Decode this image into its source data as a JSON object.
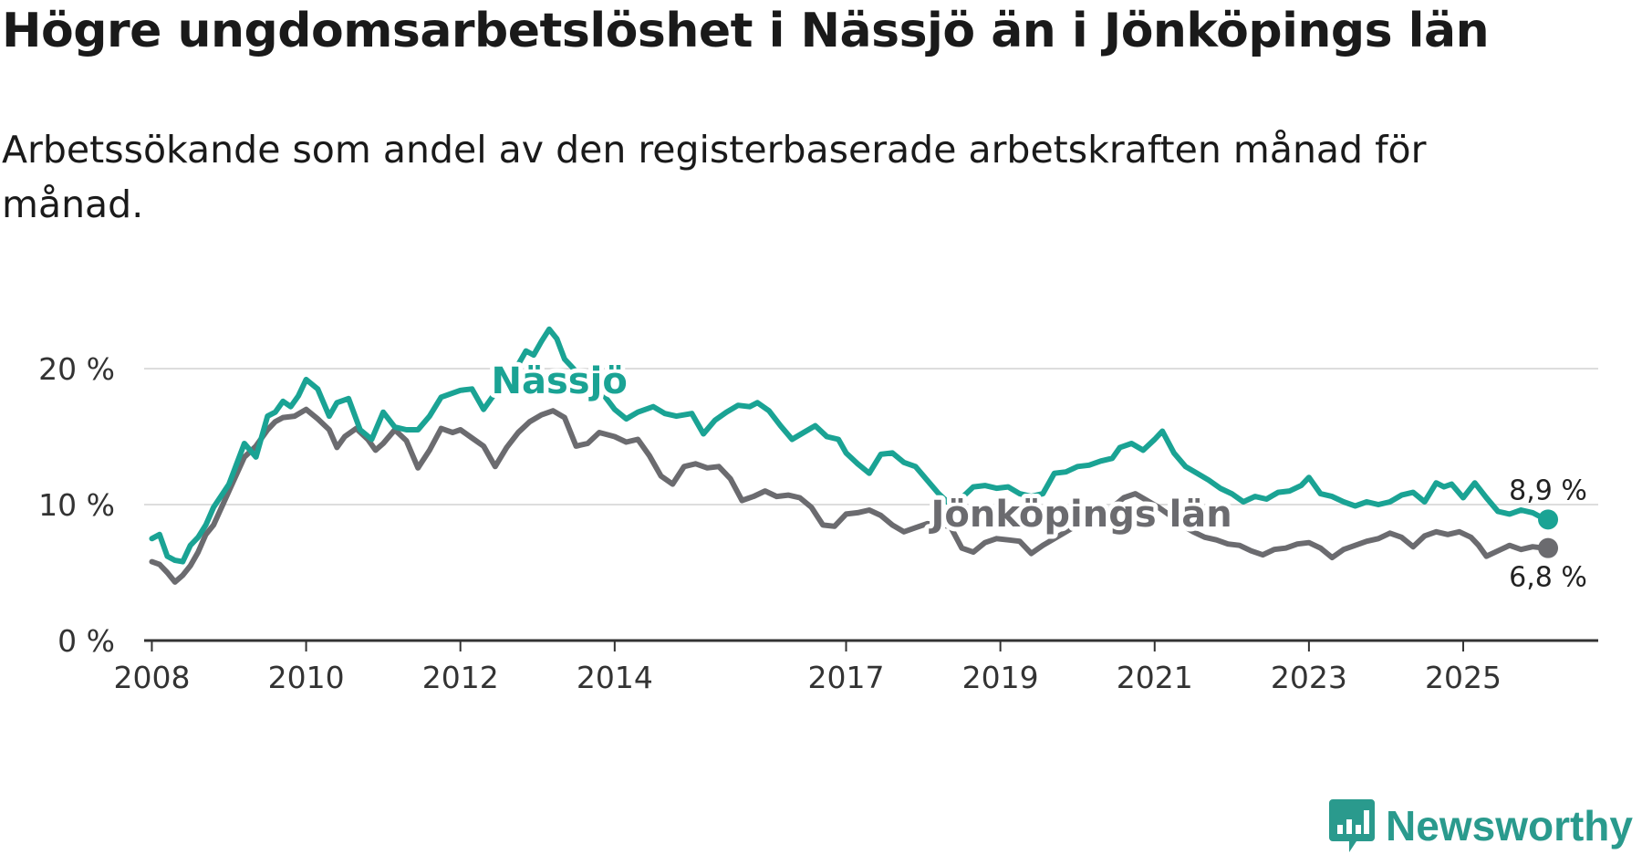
{
  "title": "Högre ungdomsarbetslöshet i Nässjö än i Jönköpings län",
  "subtitle": "Arbetssökande som andel av den registerbaserade arbetskraften månad för månad.",
  "brand": "Newsworthy",
  "colors": {
    "nassjo": "#1aa394",
    "lan": "#6b6b6f",
    "grid": "#dddddd",
    "axis": "#333333",
    "brand": "#2a9a8d"
  },
  "chart_data": {
    "type": "line",
    "title": "Högre ungdomsarbetslöshet i Nässjö än i Jönköpings län",
    "xlabel": "",
    "ylabel": "",
    "xlim": [
      2007.9,
      2026.75
    ],
    "ylim": [
      0,
      20
    ],
    "y_ticks": [
      {
        "value": 0,
        "label": "0 %"
      },
      {
        "value": 10,
        "label": "10 %"
      },
      {
        "value": 20,
        "label": "20 %"
      }
    ],
    "x_ticks": [
      {
        "value": 2008,
        "label": "2008"
      },
      {
        "value": 2010,
        "label": "2010"
      },
      {
        "value": 2012,
        "label": "2012"
      },
      {
        "value": 2014,
        "label": "2014"
      },
      {
        "value": 2017,
        "label": "2017"
      },
      {
        "value": 2019,
        "label": "2019"
      },
      {
        "value": 2021,
        "label": "2021"
      },
      {
        "value": 2023,
        "label": "2023"
      },
      {
        "value": 2025,
        "label": "2025"
      }
    ],
    "grid": true,
    "series": [
      {
        "name": "Nässjö",
        "label": "Nässjö",
        "end_label": "8,9 %",
        "points": [
          [
            2008.0,
            7.5
          ],
          [
            2008.1,
            7.8
          ],
          [
            2008.2,
            6.2
          ],
          [
            2008.3,
            5.9
          ],
          [
            2008.4,
            5.8
          ],
          [
            2008.5,
            7.0
          ],
          [
            2008.6,
            7.6
          ],
          [
            2008.7,
            8.5
          ],
          [
            2008.8,
            9.8
          ],
          [
            2009.0,
            11.5
          ],
          [
            2009.2,
            14.5
          ],
          [
            2009.35,
            13.5
          ],
          [
            2009.5,
            16.5
          ],
          [
            2009.6,
            16.8
          ],
          [
            2009.7,
            17.6
          ],
          [
            2009.8,
            17.2
          ],
          [
            2009.9,
            18.0
          ],
          [
            2010.0,
            19.2
          ],
          [
            2010.15,
            18.5
          ],
          [
            2010.3,
            16.5
          ],
          [
            2010.4,
            17.5
          ],
          [
            2010.55,
            17.8
          ],
          [
            2010.7,
            15.5
          ],
          [
            2010.85,
            14.8
          ],
          [
            2011.0,
            16.8
          ],
          [
            2011.15,
            15.7
          ],
          [
            2011.3,
            15.5
          ],
          [
            2011.45,
            15.5
          ],
          [
            2011.6,
            16.5
          ],
          [
            2011.75,
            17.9
          ],
          [
            2011.9,
            18.2
          ],
          [
            2012.0,
            18.4
          ],
          [
            2012.15,
            18.5
          ],
          [
            2012.3,
            17.0
          ],
          [
            2012.45,
            18.2
          ],
          [
            2012.6,
            19.2
          ],
          [
            2012.75,
            20.3
          ],
          [
            2012.85,
            21.3
          ],
          [
            2012.95,
            21.0
          ],
          [
            2013.05,
            22.0
          ],
          [
            2013.15,
            22.9
          ],
          [
            2013.25,
            22.2
          ],
          [
            2013.35,
            20.7
          ],
          [
            2013.5,
            19.8
          ],
          [
            2013.65,
            19.3
          ],
          [
            2013.8,
            18.5
          ],
          [
            2014.0,
            17.0
          ],
          [
            2014.15,
            16.3
          ],
          [
            2014.3,
            16.8
          ],
          [
            2014.5,
            17.2
          ],
          [
            2014.65,
            16.7
          ],
          [
            2014.8,
            16.5
          ],
          [
            2015.0,
            16.7
          ],
          [
            2015.15,
            15.2
          ],
          [
            2015.3,
            16.2
          ],
          [
            2015.45,
            16.8
          ],
          [
            2015.6,
            17.3
          ],
          [
            2015.75,
            17.2
          ],
          [
            2015.85,
            17.5
          ],
          [
            2016.0,
            16.9
          ],
          [
            2016.15,
            15.8
          ],
          [
            2016.3,
            14.8
          ],
          [
            2016.45,
            15.3
          ],
          [
            2016.6,
            15.8
          ],
          [
            2016.75,
            15.0
          ],
          [
            2016.9,
            14.8
          ],
          [
            2017.0,
            13.8
          ],
          [
            2017.15,
            13.0
          ],
          [
            2017.3,
            12.3
          ],
          [
            2017.45,
            13.7
          ],
          [
            2017.6,
            13.8
          ],
          [
            2017.75,
            13.1
          ],
          [
            2017.9,
            12.8
          ],
          [
            2018.05,
            11.8
          ],
          [
            2018.2,
            10.8
          ],
          [
            2018.35,
            10.0
          ],
          [
            2018.5,
            10.5
          ],
          [
            2018.65,
            11.3
          ],
          [
            2018.8,
            11.4
          ],
          [
            2018.95,
            11.2
          ],
          [
            2019.1,
            11.3
          ],
          [
            2019.25,
            10.8
          ],
          [
            2019.4,
            10.6
          ],
          [
            2019.55,
            10.8
          ],
          [
            2019.7,
            12.3
          ],
          [
            2019.85,
            12.4
          ],
          [
            2020.0,
            12.8
          ],
          [
            2020.15,
            12.9
          ],
          [
            2020.3,
            13.2
          ],
          [
            2020.45,
            13.4
          ],
          [
            2020.55,
            14.2
          ],
          [
            2020.7,
            14.5
          ],
          [
            2020.85,
            14.0
          ],
          [
            2021.0,
            14.8
          ],
          [
            2021.1,
            15.4
          ],
          [
            2021.25,
            13.8
          ],
          [
            2021.4,
            12.8
          ],
          [
            2021.55,
            12.3
          ],
          [
            2021.7,
            11.8
          ],
          [
            2021.85,
            11.2
          ],
          [
            2022.0,
            10.8
          ],
          [
            2022.15,
            10.2
          ],
          [
            2022.3,
            10.6
          ],
          [
            2022.45,
            10.4
          ],
          [
            2022.6,
            10.9
          ],
          [
            2022.75,
            11.0
          ],
          [
            2022.9,
            11.4
          ],
          [
            2023.0,
            12.0
          ],
          [
            2023.15,
            10.8
          ],
          [
            2023.3,
            10.6
          ],
          [
            2023.45,
            10.2
          ],
          [
            2023.6,
            9.9
          ],
          [
            2023.75,
            10.2
          ],
          [
            2023.9,
            10.0
          ],
          [
            2024.05,
            10.2
          ],
          [
            2024.2,
            10.7
          ],
          [
            2024.35,
            10.9
          ],
          [
            2024.5,
            10.2
          ],
          [
            2024.65,
            11.6
          ],
          [
            2024.75,
            11.3
          ],
          [
            2024.85,
            11.5
          ],
          [
            2025.0,
            10.5
          ],
          [
            2025.15,
            11.6
          ],
          [
            2025.3,
            10.5
          ],
          [
            2025.45,
            9.5
          ],
          [
            2025.6,
            9.3
          ],
          [
            2025.75,
            9.6
          ],
          [
            2025.9,
            9.4
          ],
          [
            2026.0,
            9.1
          ],
          [
            2026.1,
            8.9
          ]
        ]
      },
      {
        "name": "Jönköpings län",
        "label": "Jönköpings län",
        "end_label": "6,8 %",
        "points": [
          [
            2008.0,
            5.8
          ],
          [
            2008.1,
            5.6
          ],
          [
            2008.2,
            5.0
          ],
          [
            2008.3,
            4.3
          ],
          [
            2008.4,
            4.8
          ],
          [
            2008.5,
            5.5
          ],
          [
            2008.6,
            6.5
          ],
          [
            2008.7,
            7.8
          ],
          [
            2008.8,
            8.5
          ],
          [
            2009.0,
            11.0
          ],
          [
            2009.2,
            13.5
          ],
          [
            2009.35,
            14.3
          ],
          [
            2009.5,
            15.5
          ],
          [
            2009.6,
            16.1
          ],
          [
            2009.7,
            16.4
          ],
          [
            2009.85,
            16.5
          ],
          [
            2010.0,
            17.0
          ],
          [
            2010.15,
            16.3
          ],
          [
            2010.3,
            15.5
          ],
          [
            2010.4,
            14.2
          ],
          [
            2010.5,
            15.0
          ],
          [
            2010.65,
            15.6
          ],
          [
            2010.8,
            14.8
          ],
          [
            2010.9,
            14.0
          ],
          [
            2011.0,
            14.5
          ],
          [
            2011.15,
            15.5
          ],
          [
            2011.3,
            14.7
          ],
          [
            2011.45,
            12.7
          ],
          [
            2011.6,
            14.0
          ],
          [
            2011.75,
            15.6
          ],
          [
            2011.9,
            15.3
          ],
          [
            2012.0,
            15.5
          ],
          [
            2012.15,
            14.9
          ],
          [
            2012.3,
            14.3
          ],
          [
            2012.45,
            12.8
          ],
          [
            2012.6,
            14.2
          ],
          [
            2012.75,
            15.3
          ],
          [
            2012.9,
            16.1
          ],
          [
            2013.05,
            16.6
          ],
          [
            2013.2,
            16.9
          ],
          [
            2013.35,
            16.4
          ],
          [
            2013.5,
            14.3
          ],
          [
            2013.65,
            14.5
          ],
          [
            2013.8,
            15.3
          ],
          [
            2014.0,
            15.0
          ],
          [
            2014.15,
            14.6
          ],
          [
            2014.3,
            14.8
          ],
          [
            2014.45,
            13.6
          ],
          [
            2014.6,
            12.1
          ],
          [
            2014.75,
            11.5
          ],
          [
            2014.9,
            12.8
          ],
          [
            2015.05,
            13.0
          ],
          [
            2015.2,
            12.7
          ],
          [
            2015.35,
            12.8
          ],
          [
            2015.5,
            11.9
          ],
          [
            2015.65,
            10.3
          ],
          [
            2015.8,
            10.6
          ],
          [
            2015.95,
            11.0
          ],
          [
            2016.1,
            10.6
          ],
          [
            2016.25,
            10.7
          ],
          [
            2016.4,
            10.5
          ],
          [
            2016.55,
            9.8
          ],
          [
            2016.7,
            8.5
          ],
          [
            2016.85,
            8.4
          ],
          [
            2017.0,
            9.3
          ],
          [
            2017.15,
            9.4
          ],
          [
            2017.3,
            9.6
          ],
          [
            2017.45,
            9.2
          ],
          [
            2017.6,
            8.5
          ],
          [
            2017.75,
            8.0
          ],
          [
            2017.9,
            8.3
          ],
          [
            2018.05,
            8.6
          ],
          [
            2018.2,
            8.5
          ],
          [
            2018.35,
            8.4
          ],
          [
            2018.5,
            6.8
          ],
          [
            2018.65,
            6.5
          ],
          [
            2018.8,
            7.2
          ],
          [
            2018.95,
            7.5
          ],
          [
            2019.1,
            7.4
          ],
          [
            2019.25,
            7.3
          ],
          [
            2019.4,
            6.4
          ],
          [
            2019.55,
            7.0
          ],
          [
            2019.7,
            7.5
          ],
          [
            2019.85,
            8.0
          ],
          [
            2020.0,
            8.5
          ],
          [
            2020.15,
            8.8
          ],
          [
            2020.3,
            9.3
          ],
          [
            2020.45,
            9.8
          ],
          [
            2020.6,
            10.5
          ],
          [
            2020.75,
            10.8
          ],
          [
            2020.9,
            10.3
          ],
          [
            2021.05,
            9.8
          ],
          [
            2021.2,
            9.2
          ],
          [
            2021.35,
            8.5
          ],
          [
            2021.5,
            8.0
          ],
          [
            2021.65,
            7.6
          ],
          [
            2021.8,
            7.4
          ],
          [
            2021.95,
            7.1
          ],
          [
            2022.1,
            7.0
          ],
          [
            2022.25,
            6.6
          ],
          [
            2022.4,
            6.3
          ],
          [
            2022.55,
            6.7
          ],
          [
            2022.7,
            6.8
          ],
          [
            2022.85,
            7.1
          ],
          [
            2023.0,
            7.2
          ],
          [
            2023.15,
            6.8
          ],
          [
            2023.3,
            6.1
          ],
          [
            2023.45,
            6.7
          ],
          [
            2023.6,
            7.0
          ],
          [
            2023.75,
            7.3
          ],
          [
            2023.9,
            7.5
          ],
          [
            2024.05,
            7.9
          ],
          [
            2024.2,
            7.6
          ],
          [
            2024.35,
            6.9
          ],
          [
            2024.5,
            7.7
          ],
          [
            2024.65,
            8.0
          ],
          [
            2024.8,
            7.8
          ],
          [
            2024.95,
            8.0
          ],
          [
            2025.1,
            7.6
          ],
          [
            2025.2,
            7.0
          ],
          [
            2025.3,
            6.2
          ],
          [
            2025.45,
            6.6
          ],
          [
            2025.6,
            7.0
          ],
          [
            2025.75,
            6.7
          ],
          [
            2025.9,
            6.9
          ],
          [
            2026.05,
            6.8
          ],
          [
            2026.1,
            6.8
          ]
        ]
      }
    ]
  }
}
